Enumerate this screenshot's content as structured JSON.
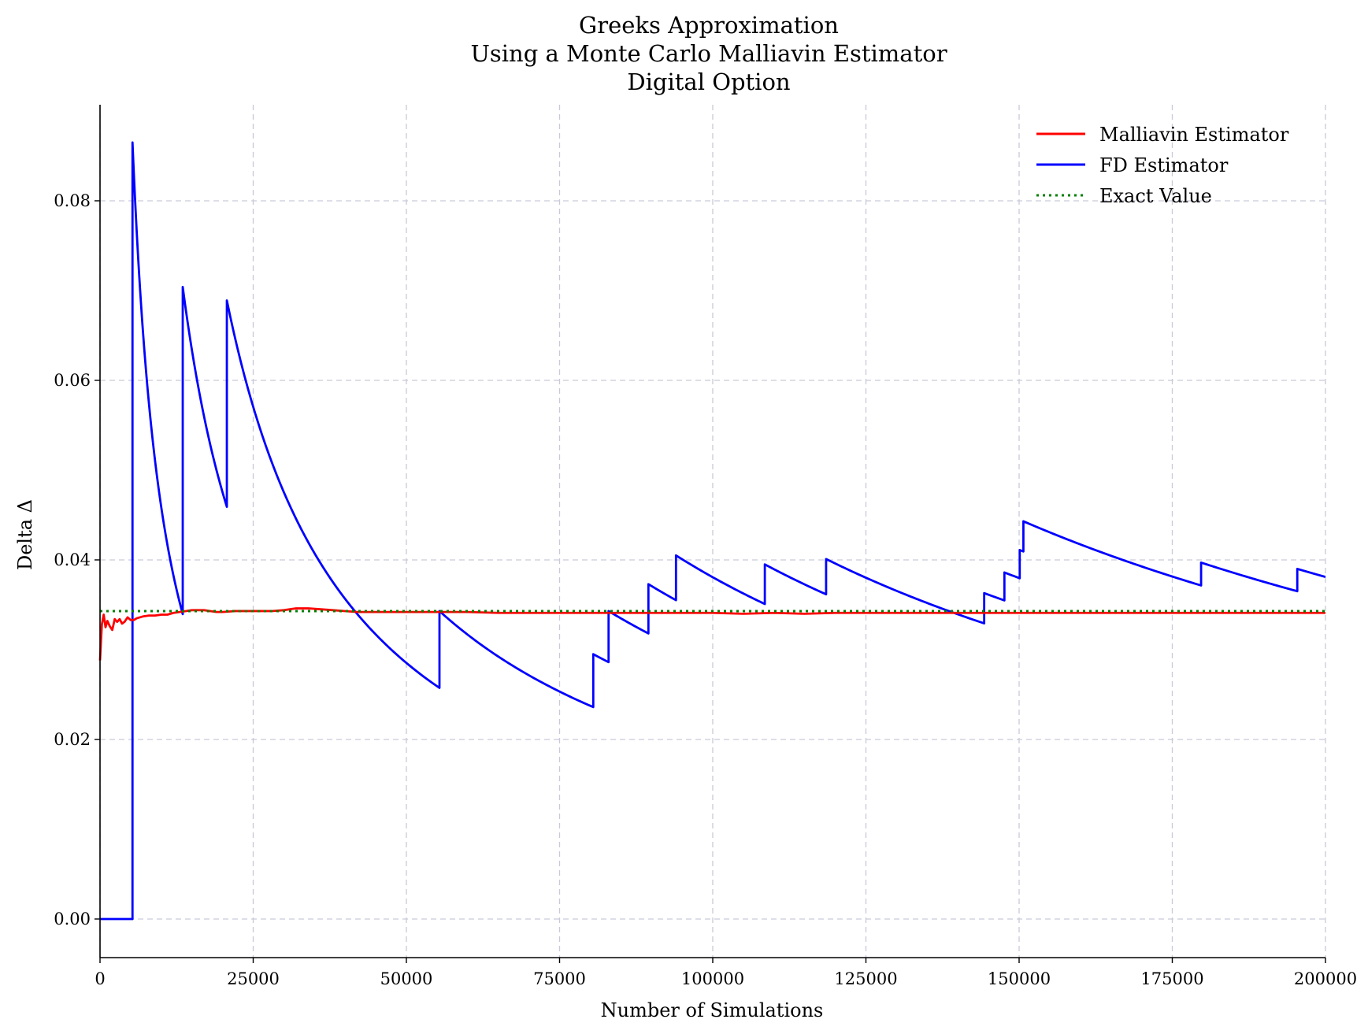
{
  "chart_data": {
    "type": "line",
    "title": [
      "Greeks Approximation",
      "Using a Monte Carlo Malliavin Estimator",
      "Digital Option"
    ],
    "xlabel": "Number of Simulations",
    "ylabel": "Delta Δ",
    "xlim": [
      0,
      200000
    ],
    "ylim": [
      -0.0043,
      0.0907
    ],
    "xticks": [
      0,
      25000,
      50000,
      75000,
      100000,
      125000,
      150000,
      175000,
      200000
    ],
    "xtick_labels": [
      "0",
      "25000",
      "50000",
      "75000",
      "100000",
      "125000",
      "150000",
      "175000",
      "200000"
    ],
    "yticks": [
      0.0,
      0.02,
      0.04,
      0.06,
      0.08
    ],
    "ytick_labels": [
      "0.00",
      "0.02",
      "0.04",
      "0.06",
      "0.08"
    ],
    "grid": true,
    "legend_position": "top-right",
    "series": [
      {
        "name": "Malliavin Estimator",
        "color": "#ff0000",
        "style": "solid",
        "x": [
          0,
          300,
          600,
          900,
          1200,
          1600,
          2000,
          2400,
          2800,
          3200,
          3600,
          4000,
          4500,
          5000,
          5500,
          6000,
          7000,
          8000,
          9000,
          10000,
          11000,
          12000,
          13000,
          14000,
          15000,
          16000,
          17000,
          18000,
          19000,
          20000,
          22000,
          24000,
          26000,
          28000,
          30000,
          32000,
          34000,
          36000,
          38000,
          40000,
          42000,
          45000,
          50000,
          55000,
          60000,
          65000,
          70000,
          75000,
          80000,
          85000,
          90000,
          95000,
          100000,
          105000,
          110000,
          115000,
          120000,
          125000,
          130000,
          135000,
          140000,
          145000,
          150000,
          155000,
          160000,
          170000,
          180000,
          190000,
          200000
        ],
        "y": [
          0.0288,
          0.0328,
          0.0339,
          0.0325,
          0.0332,
          0.0326,
          0.0322,
          0.0334,
          0.0331,
          0.0334,
          0.0329,
          0.0331,
          0.0336,
          0.0333,
          0.0333,
          0.0335,
          0.0337,
          0.0338,
          0.0338,
          0.0339,
          0.0339,
          0.0341,
          0.0342,
          0.0343,
          0.0344,
          0.0344,
          0.0344,
          0.0343,
          0.0342,
          0.0342,
          0.0343,
          0.0343,
          0.0343,
          0.0343,
          0.0344,
          0.0346,
          0.0346,
          0.0345,
          0.0344,
          0.0343,
          0.0342,
          0.0342,
          0.0342,
          0.0342,
          0.0342,
          0.0341,
          0.0341,
          0.0341,
          0.0341,
          0.0341,
          0.0341,
          0.0341,
          0.0341,
          0.034,
          0.0341,
          0.034,
          0.0341,
          0.0341,
          0.0341,
          0.0341,
          0.0341,
          0.0341,
          0.0341,
          0.0341,
          0.0341,
          0.0341,
          0.0341,
          0.0341,
          0.0341
        ]
      },
      {
        "name": "FD Estimator",
        "color": "#0000ff",
        "style": "solid",
        "jumps": [
          [
            5300,
            0.0865
          ],
          [
            13500,
            0.0704
          ],
          [
            20700,
            0.0689
          ],
          [
            55400,
            0.0343
          ],
          [
            80500,
            0.0295
          ],
          [
            83000,
            0.0343
          ],
          [
            89500,
            0.0373
          ],
          [
            94000,
            0.0405
          ],
          [
            108500,
            0.0395
          ],
          [
            118500,
            0.0401
          ],
          [
            144300,
            0.0363
          ],
          [
            147600,
            0.0386
          ],
          [
            150100,
            0.0411
          ],
          [
            150700,
            0.0443
          ],
          [
            179700,
            0.0397
          ],
          [
            195400,
            0.039
          ]
        ],
        "end_x": 200000,
        "start_value": 0.0
      },
      {
        "name": "Exact Value",
        "color": "#008000",
        "style": "dotted",
        "x": [
          0,
          200000
        ],
        "y": [
          0.0343,
          0.0343
        ]
      }
    ]
  }
}
